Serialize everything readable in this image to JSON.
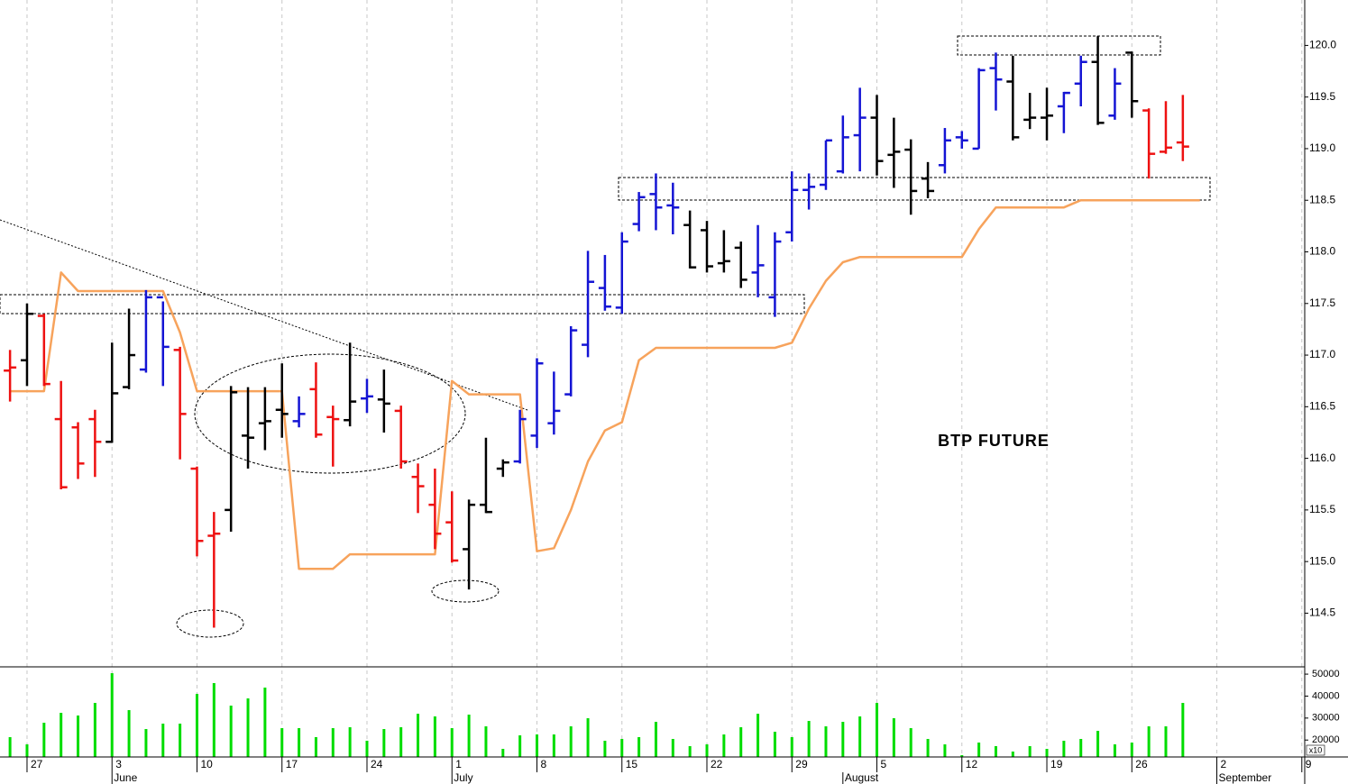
{
  "chart_data": [
    {
      "type": "ohlc",
      "title": "BTP FUTURE",
      "x": [
        0,
        1,
        2,
        3,
        4,
        5,
        6,
        7,
        8,
        9,
        10,
        11,
        12,
        13,
        14,
        15,
        16,
        17,
        18,
        19,
        20,
        21,
        22,
        23,
        24,
        25,
        26,
        27,
        28,
        29,
        30,
        31,
        32,
        33,
        34,
        35,
        36,
        37,
        38,
        39,
        40,
        41,
        42,
        43,
        44,
        45,
        46,
        47,
        48,
        49,
        50,
        51,
        52,
        53,
        54,
        55,
        56,
        57,
        58,
        59,
        60,
        61,
        62,
        63,
        64,
        65,
        66,
        67,
        68,
        69,
        70
      ],
      "xlim": [
        -0.59,
        76.17
      ],
      "xticks": [
        {
          "value": 1,
          "label": "27"
        },
        {
          "value": 6,
          "label": "3"
        },
        {
          "value": 11,
          "label": "10"
        },
        {
          "value": 16,
          "label": "17"
        },
        {
          "value": 21,
          "label": "24"
        },
        {
          "value": 26,
          "label": "1"
        },
        {
          "value": 31,
          "label": "8"
        },
        {
          "value": 36,
          "label": "15"
        },
        {
          "value": 41,
          "label": "22"
        },
        {
          "value": 46,
          "label": "29"
        },
        {
          "value": 51,
          "label": "5"
        },
        {
          "value": 56,
          "label": "12"
        },
        {
          "value": 61,
          "label": "19"
        },
        {
          "value": 66,
          "label": "26"
        },
        {
          "value": 71,
          "label": "2"
        },
        {
          "value": 76,
          "label": "9"
        }
      ],
      "month_labels": [
        {
          "value": 6,
          "label": "June"
        },
        {
          "value": 26,
          "label": "July"
        },
        {
          "value": 49,
          "label": "August"
        },
        {
          "value": 71,
          "label": "September"
        }
      ],
      "ylim": [
        113.98,
        120.44
      ],
      "yticks": [
        114.5,
        {
          "value": 115,
          "label": "115.0"
        },
        115.5,
        {
          "value": 116,
          "label": "116.0"
        },
        116.5,
        {
          "value": 117,
          "label": "117.0"
        },
        117.5,
        {
          "value": 118,
          "label": "118.0"
        },
        118.5,
        {
          "value": 119,
          "label": "119.0"
        },
        119.5,
        {
          "value": 120,
          "label": "120.0"
        }
      ],
      "grid": true,
      "open": [
        116.85,
        116.95,
        117.38,
        116.38,
        116.3,
        116.38,
        116.16,
        116.69,
        116.86,
        117.56,
        117.05,
        115.9,
        115.25,
        115.5,
        116.22,
        116.34,
        116.47,
        116.36,
        116.67,
        116.4,
        116.37,
        116.58,
        116.57,
        116.46,
        115.82,
        115.55,
        115.38,
        115.12,
        115.55,
        115.9,
        115.97,
        116.22,
        116.34,
        116.62,
        117.1,
        117.65,
        117.46,
        118.27,
        118.56,
        118.45,
        118.26,
        118.21,
        117.89,
        118.04,
        117.8,
        117.56,
        118.19,
        118.6,
        118.65,
        118.78,
        119.13,
        119.3,
        118.94,
        118.99,
        118.71,
        118.84,
        119.11,
        119.0,
        119.78,
        119.65,
        119.28,
        119.3,
        119.41,
        119.63,
        119.84,
        119.32,
        119.93,
        119.37,
        118.97,
        119.06,
        null
      ],
      "high": [
        117.05,
        117.5,
        117.4,
        116.75,
        116.35,
        116.47,
        117.12,
        117.45,
        117.63,
        117.52,
        117.08,
        115.92,
        115.48,
        116.7,
        116.69,
        116.69,
        116.92,
        116.6,
        116.93,
        116.51,
        117.12,
        116.77,
        116.86,
        116.51,
        115.95,
        115.9,
        115.68,
        115.6,
        116.2,
        115.99,
        116.47,
        116.97,
        116.84,
        117.28,
        118.01,
        117.97,
        118.19,
        118.58,
        118.76,
        118.67,
        118.4,
        118.3,
        118.21,
        118.1,
        118.26,
        118.19,
        118.78,
        118.76,
        119.08,
        119.32,
        119.59,
        119.52,
        119.3,
        119.09,
        118.87,
        119.2,
        119.17,
        119.78,
        119.93,
        119.9,
        119.54,
        119.59,
        119.55,
        119.9,
        120.09,
        119.78,
        119.94,
        119.39,
        119.46,
        119.52,
        null
      ],
      "low": [
        116.55,
        116.7,
        116.7,
        115.7,
        115.8,
        115.82,
        116.15,
        116.67,
        116.83,
        116.7,
        115.99,
        115.05,
        114.36,
        115.29,
        115.9,
        116.08,
        116.2,
        116.3,
        116.2,
        115.92,
        116.31,
        116.44,
        116.25,
        115.9,
        115.47,
        115.12,
        114.99,
        114.73,
        115.47,
        115.82,
        115.95,
        116.1,
        116.23,
        116.6,
        116.98,
        117.43,
        117.4,
        118.2,
        118.21,
        118.17,
        117.84,
        117.8,
        117.8,
        117.65,
        117.56,
        117.37,
        118.1,
        118.41,
        118.6,
        118.76,
        118.78,
        118.74,
        118.62,
        118.36,
        118.52,
        118.76,
        119.0,
        119.0,
        119.37,
        119.08,
        119.19,
        119.08,
        119.15,
        119.41,
        119.23,
        119.28,
        119.3,
        118.71,
        118.95,
        118.88,
        null
      ],
      "close": [
        116.88,
        117.4,
        116.72,
        115.72,
        115.95,
        116.16,
        116.63,
        117.0,
        117.56,
        117.08,
        116.43,
        115.2,
        115.27,
        116.64,
        116.2,
        116.36,
        116.43,
        116.43,
        116.23,
        116.38,
        116.55,
        116.6,
        116.53,
        115.97,
        115.73,
        115.27,
        115.01,
        115.55,
        115.48,
        115.96,
        116.38,
        116.92,
        116.46,
        117.24,
        117.71,
        117.47,
        118.1,
        118.53,
        118.43,
        118.43,
        117.85,
        117.86,
        117.91,
        117.73,
        117.87,
        118.1,
        118.6,
        118.63,
        119.08,
        119.11,
        119.3,
        118.88,
        118.97,
        118.59,
        118.59,
        119.08,
        119.08,
        119.76,
        119.67,
        119.11,
        119.3,
        119.32,
        119.54,
        119.84,
        119.25,
        119.63,
        119.46,
        118.95,
        119.01,
        119.02,
        null
      ],
      "colors": [
        "#ee1111",
        "#000000",
        "#ee1111",
        "#ee1111",
        "#ee1111",
        "#ee1111",
        "#000000",
        "#000000",
        "#1414d4",
        "#1414d4",
        "#ee1111",
        "#ee1111",
        "#ee1111",
        "#000000",
        "#000000",
        "#000000",
        "#000000",
        "#1414d4",
        "#ee1111",
        "#ee1111",
        "#000000",
        "#1414d4",
        "#000000",
        "#ee1111",
        "#ee1111",
        "#ee1111",
        "#ee1111",
        "#000000",
        "#000000",
        "#000000",
        "#1414d4",
        "#1414d4",
        "#1414d4",
        "#1414d4",
        "#1414d4",
        "#1414d4",
        "#1414d4",
        "#1414d4",
        "#1414d4",
        "#1414d4",
        "#000000",
        "#000000",
        "#000000",
        "#000000",
        "#1414d4",
        "#1414d4",
        "#1414d4",
        "#1414d4",
        "#1414d4",
        "#1414d4",
        "#1414d4",
        "#000000",
        "#000000",
        "#000000",
        "#000000",
        "#1414d4",
        "#1414d4",
        "#1414d4",
        "#1414d4",
        "#000000",
        "#000000",
        "#000000",
        "#1414d4",
        "#1414d4",
        "#000000",
        "#1414d4",
        "#000000",
        "#ee1111",
        "#ee1111",
        "#ee1111",
        null
      ],
      "series": [
        {
          "color": "#f7a35c",
          "values": [
            116.65,
            116.65,
            116.65,
            117.8,
            117.62,
            117.62,
            117.62,
            117.62,
            117.62,
            117.62,
            117.22,
            116.65,
            116.65,
            116.65,
            116.65,
            116.65,
            116.65,
            114.93,
            114.93,
            114.93,
            115.07,
            115.07,
            115.07,
            115.07,
            115.07,
            115.07,
            116.75,
            116.62,
            116.62,
            116.62,
            116.62,
            115.1,
            115.13,
            115.5,
            115.97,
            116.27,
            116.35,
            116.95,
            117.07,
            117.07,
            117.07,
            117.07,
            117.07,
            117.07,
            117.07,
            117.07,
            117.12,
            117.45,
            117.72,
            117.9,
            117.95,
            117.95,
            117.95,
            117.95,
            117.95,
            117.95,
            117.95,
            118.22,
            118.43,
            118.43,
            118.43,
            118.43,
            118.43,
            118.5,
            118.5,
            118.5,
            118.5,
            118.5,
            118.5,
            118.5,
            118.5
          ]
        }
      ]
    },
    {
      "type": "volume",
      "unit_label": "x10",
      "color": "#00dd00",
      "x": [
        0,
        1,
        2,
        3,
        4,
        5,
        6,
        7,
        8,
        9,
        10,
        11,
        12,
        13,
        14,
        15,
        16,
        17,
        18,
        19,
        20,
        21,
        22,
        23,
        24,
        25,
        26,
        27,
        28,
        29,
        30,
        31,
        32,
        33,
        34,
        35,
        36,
        37,
        38,
        39,
        40,
        41,
        42,
        43,
        44,
        45,
        46,
        47,
        48,
        49,
        50,
        51,
        52,
        53,
        54,
        55,
        56,
        57,
        58,
        59,
        60,
        61,
        62,
        63,
        64,
        65,
        66,
        67,
        68,
        69,
        70
      ],
      "values": [
        21320,
        18040,
        27880,
        32390,
        31160,
        36900,
        50430,
        33620,
        25010,
        27470,
        27470,
        41000,
        45920,
        35670,
        38950,
        43870,
        25420,
        25420,
        21320,
        25420,
        25830,
        19680,
        25010,
        25830,
        31980,
        30750,
        25420,
        31570,
        26240,
        15990,
        22140,
        22550,
        22550,
        26240,
        29930,
        19680,
        20500,
        21320,
        28290,
        20500,
        17220,
        18040,
        22550,
        25830,
        31980,
        23780,
        21320,
        28700,
        26240,
        28290,
        30750,
        36900,
        29930,
        25420,
        20500,
        18040,
        13120,
        18860,
        17220,
        14760,
        17220,
        15990,
        19680,
        20500,
        24190,
        18040,
        18860,
        26240,
        26240,
        36900,
        null
      ],
      "ylim": [
        12300,
        52900
      ],
      "yticks": [
        20000,
        30000,
        40000,
        50000
      ]
    }
  ]
}
